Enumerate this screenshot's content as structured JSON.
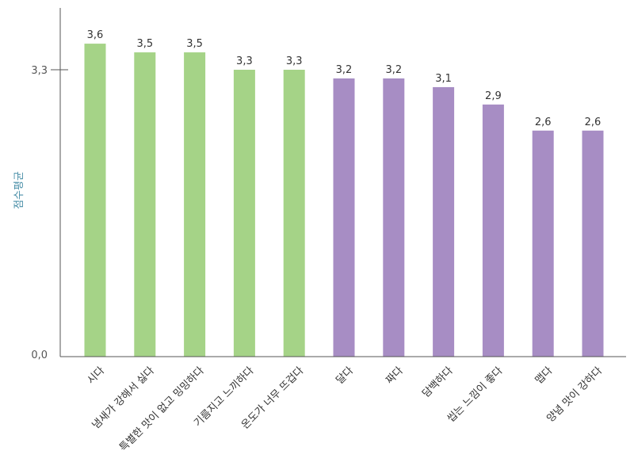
{
  "chart_data": {
    "type": "bar",
    "title": "",
    "xlabel": "",
    "ylabel": "점수평균",
    "ylim": [
      0,
      3.3
    ],
    "yticks": [
      "0,0",
      "3,3"
    ],
    "grid": false,
    "legend": "none",
    "categories": [
      "시다",
      "냄새가 강해서 싫다",
      "특별한 맛이 없고 밍밍하다",
      "기름지고 느끼하다",
      "온도가 너무 뜨겁다",
      "달다",
      "짜다",
      "담백하다",
      "씹는 느낌이 좋다",
      "맵다",
      "양념 맛이 강하다"
    ],
    "values": [
      3.6,
      3.5,
      3.5,
      3.3,
      3.3,
      3.2,
      3.2,
      3.1,
      2.9,
      2.6,
      2.6
    ],
    "value_labels": [
      "3,6",
      "3,5",
      "3,5",
      "3,3",
      "3,3",
      "3,2",
      "3,2",
      "3,1",
      "2,9",
      "2,6",
      "2,6"
    ],
    "bar_colors": [
      "#a5d387",
      "#a5d387",
      "#a5d387",
      "#a5d387",
      "#a5d387",
      "#a78dc4",
      "#a78dc4",
      "#a78dc4",
      "#a78dc4",
      "#a78dc4",
      "#a78dc4"
    ],
    "axis_color": "#555555",
    "ylabel_color": "#4a8fa8"
  }
}
